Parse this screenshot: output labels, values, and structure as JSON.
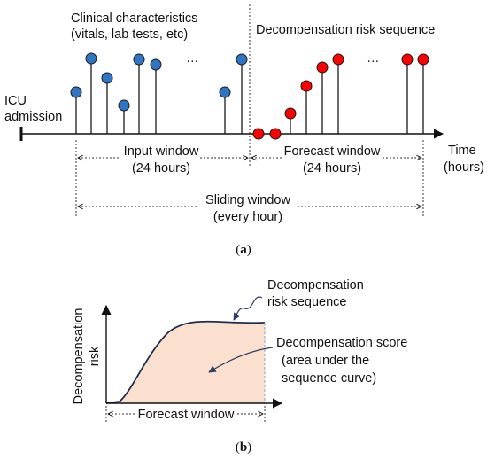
{
  "panel_a": {
    "label_clinical_line1": "Clinical characteristics",
    "label_clinical_line2": "(vitals, lab tests, etc)",
    "label_risk_sequence": "Decompensation risk sequence",
    "label_icu_line1": "ICU",
    "label_icu_line2": "admission",
    "ellipsis_left": "…",
    "ellipsis_right": "…",
    "label_time_line1": "Time",
    "label_time_line2": "(hours)",
    "input_window_line1": "Input window",
    "input_window_line2": "(24 hours)",
    "forecast_window_line1": "Forecast window",
    "forecast_window_line2": "(24 hours)",
    "sliding_window_line1": "Sliding window",
    "sliding_window_line2": "(every hour)",
    "caption_open": "(",
    "caption_letter": "a",
    "caption_close": ")",
    "colors": {
      "input_marker": "#2e75c6",
      "forecast_marker": "#ff0000",
      "stroke": "#1a1a1a"
    }
  },
  "panel_b": {
    "ylabel_line1": "Decompensation",
    "ylabel_line2": "risk",
    "curve_label_line1": "Decompensation",
    "curve_label_line2": "risk sequence",
    "score_label_line1": "Decompensation score",
    "score_label_line2": "(area under the",
    "score_label_line3": "sequence curve)",
    "forecast_window": "Forecast window",
    "caption_open": "(",
    "caption_letter": "b",
    "caption_close": ")",
    "colors": {
      "area_fill": "#fbe0cf",
      "curve": "#1f2d4f",
      "dashed": "#8aa6c8"
    }
  }
}
